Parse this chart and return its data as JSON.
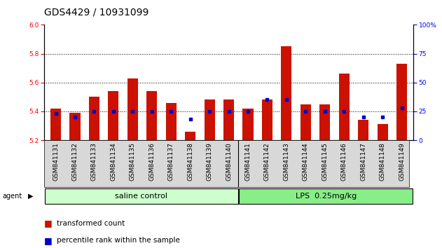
{
  "title": "GDS4429 / 10931099",
  "samples": [
    "GSM841131",
    "GSM841132",
    "GSM841133",
    "GSM841134",
    "GSM841135",
    "GSM841136",
    "GSM841137",
    "GSM841138",
    "GSM841139",
    "GSM841140",
    "GSM841141",
    "GSM841142",
    "GSM841143",
    "GSM841144",
    "GSM841145",
    "GSM841146",
    "GSM841147",
    "GSM841148",
    "GSM841149"
  ],
  "transformed_count": [
    5.42,
    5.39,
    5.5,
    5.54,
    5.63,
    5.54,
    5.46,
    5.26,
    5.48,
    5.48,
    5.42,
    5.48,
    5.85,
    5.45,
    5.45,
    5.66,
    5.34,
    5.31,
    5.73
  ],
  "percentile_rank": [
    23,
    20,
    25,
    25,
    25,
    25,
    25,
    18,
    25,
    25,
    25,
    35,
    35,
    25,
    25,
    25,
    20,
    20,
    28
  ],
  "group_labels": [
    "saline control",
    "LPS  0.25mg/kg"
  ],
  "group_counts": [
    10,
    9
  ],
  "group_colors_light": [
    "#ccffcc",
    "#88ee88"
  ],
  "group_colors_dark": [
    "#88ee88",
    "#33cc33"
  ],
  "bar_color": "#cc1100",
  "dot_color": "#0000cc",
  "baseline": 5.2,
  "ylim_left": [
    5.2,
    6.0
  ],
  "ylim_right": [
    0,
    100
  ],
  "yticks_left": [
    5.2,
    5.4,
    5.6,
    5.8,
    6.0
  ],
  "yticks_right": [
    0,
    25,
    50,
    75,
    100
  ],
  "hlines": [
    5.4,
    5.6,
    5.8
  ],
  "title_fontsize": 10,
  "tick_fontsize": 6.5,
  "label_fontsize": 8,
  "group_label_fontsize": 8,
  "legend_fontsize": 7.5,
  "agent_label": "agent",
  "legend_items": [
    {
      "color": "#cc1100",
      "label": "transformed count"
    },
    {
      "color": "#0000cc",
      "label": "percentile rank within the sample"
    }
  ]
}
